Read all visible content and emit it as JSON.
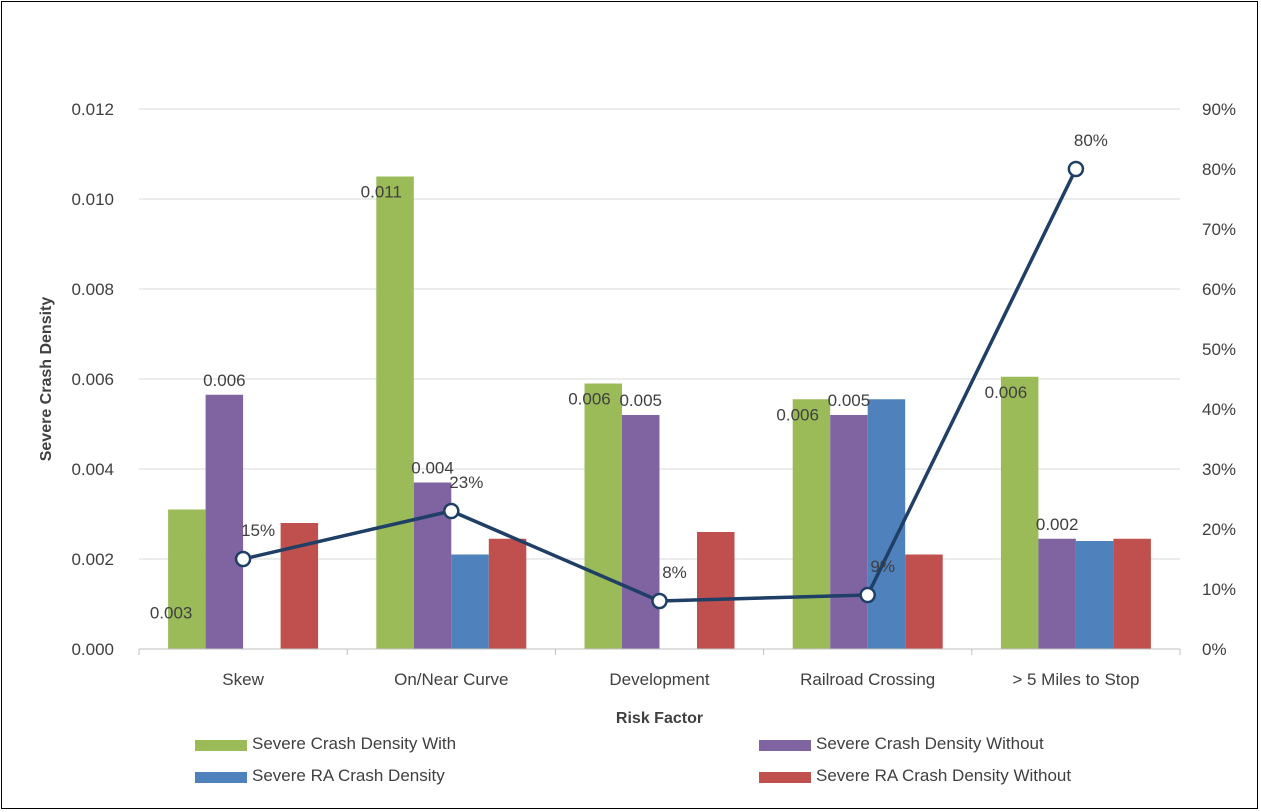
{
  "chart_data": {
    "type": "bar",
    "title": "",
    "xlabel": "Risk Factor",
    "ylabel": "Severe Crash Density",
    "categories": [
      "Skew",
      "On/Near Curve",
      "Development",
      "Railroad Crossing",
      "> 5 Miles to Stop"
    ],
    "ylim": [
      0,
      0.012
    ],
    "y_ticks": [
      "0.000",
      "0.002",
      "0.004",
      "0.006",
      "0.008",
      "0.010",
      "0.012"
    ],
    "y2lim": [
      0,
      0.9
    ],
    "y2_ticks": [
      "0%",
      "10%",
      "20%",
      "30%",
      "40%",
      "50%",
      "60%",
      "70%",
      "80%",
      "90%"
    ],
    "grid": true,
    "legend_position": "bottom",
    "series": [
      {
        "name": "Severe Crash Density With",
        "color": "#9BBB59",
        "values": [
          0.0031,
          0.0105,
          0.0059,
          0.00555,
          0.00605
        ],
        "labels": [
          "0.003",
          "0.011",
          "0.006",
          "0.006",
          "0.006"
        ]
      },
      {
        "name": "Severe Crash Density Without",
        "color": "#8064A2",
        "values": [
          0.00565,
          0.0037,
          0.0052,
          0.0052,
          0.00245
        ],
        "labels": [
          "0.006",
          "0.004",
          "0.005",
          "0.005",
          "0.002"
        ]
      },
      {
        "name": "Severe RA Crash Density",
        "color": "#4F81BD",
        "values": [
          null,
          0.0021,
          null,
          0.00555,
          0.0024
        ],
        "labels": [
          "",
          "",
          "",
          "",
          ""
        ]
      },
      {
        "name": "Severe RA Crash Density Without",
        "color": "#C0504D",
        "values": [
          0.0028,
          0.00245,
          0.0026,
          0.0021,
          0.00245
        ],
        "labels": [
          "",
          "",
          "",
          "",
          ""
        ]
      }
    ],
    "line_series": {
      "axis": "secondary",
      "color": "#1F3F66",
      "values": [
        0.15,
        0.23,
        0.08,
        0.09,
        0.8
      ],
      "labels": [
        "15%",
        "23%",
        "8%",
        "9%",
        "80%"
      ]
    }
  }
}
